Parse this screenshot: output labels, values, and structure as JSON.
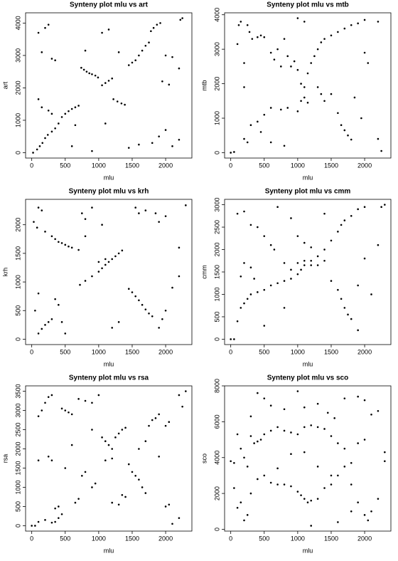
{
  "chart_data": [
    {
      "type": "scatter",
      "title": "Synteny plot mlu vs art",
      "xlabel": "mlu",
      "ylabel": "art",
      "color": "#000000",
      "xlim": [
        -92,
        2392
      ],
      "ylim": [
        -166,
        4316
      ],
      "xticks": [
        0,
        500,
        1000,
        1500,
        2000
      ],
      "yticks": [
        0,
        1000,
        2000,
        3000,
        4000
      ],
      "x": [
        20,
        80,
        120,
        160,
        200,
        240,
        300,
        350,
        400,
        450,
        500,
        550,
        600,
        650,
        700,
        740,
        780,
        820,
        860,
        900,
        950,
        990,
        1050,
        1100,
        1150,
        1200,
        1220,
        1280,
        1340,
        1390,
        1450,
        1500,
        1550,
        1600,
        1650,
        1700,
        1750,
        1780,
        1820,
        1870,
        1920,
        2220,
        2250,
        100,
        150,
        200,
        250,
        350,
        300,
        150,
        250,
        100,
        650,
        800,
        1050,
        1150,
        1300,
        1450,
        1600,
        1800,
        1900,
        2000,
        2100,
        2200,
        2050,
        1950,
        2000,
        2100,
        600,
        900,
        300,
        1100,
        2200
      ],
      "y": [
        0,
        100,
        200,
        300,
        450,
        550,
        650,
        750,
        900,
        1100,
        1200,
        1280,
        1350,
        1400,
        1450,
        2620,
        2560,
        2500,
        2450,
        2420,
        2380,
        2320,
        2080,
        2150,
        2220,
        2290,
        1650,
        1580,
        1520,
        1480,
        2700,
        2780,
        2850,
        3000,
        3150,
        3300,
        3400,
        3750,
        3850,
        3950,
        4000,
        4100,
        4150,
        3700,
        3100,
        3850,
        3950,
        2850,
        2900,
        1400,
        1300,
        1650,
        850,
        3150,
        3700,
        3800,
        3100,
        150,
        250,
        300,
        500,
        700,
        200,
        2600,
        2100,
        2200,
        3000,
        2950,
        200,
        50,
        1200,
        900,
        400
      ]
    },
    {
      "type": "scatter",
      "title": "Synteny plot mlu vs mtb",
      "xlabel": "mlu",
      "ylabel": "mtb",
      "color": "#000000",
      "xlim": [
        -92,
        2392
      ],
      "ylim": [
        -156,
        4056
      ],
      "xticks": [
        0,
        500,
        1000,
        1500,
        2000
      ],
      "yticks": [
        0,
        1000,
        2000,
        3000,
        4000
      ],
      "x": [
        0,
        50,
        100,
        120,
        150,
        200,
        250,
        280,
        320,
        400,
        450,
        500,
        600,
        650,
        700,
        750,
        800,
        850,
        900,
        950,
        1000,
        1050,
        1100,
        1150,
        1200,
        1250,
        1300,
        1350,
        1400,
        1500,
        1600,
        1700,
        1800,
        1900,
        2000,
        2200,
        1300,
        1350,
        1400,
        1650,
        1700,
        1750,
        1800,
        200,
        250,
        300,
        400,
        500,
        450,
        600,
        750,
        850,
        1000,
        1050,
        1100,
        1150,
        1500,
        1600,
        2000,
        2050,
        2200,
        2250,
        1000,
        1100,
        600,
        800,
        200,
        1850,
        1950
      ],
      "y": [
        0,
        20,
        3150,
        3700,
        3800,
        2600,
        3700,
        3500,
        3300,
        3350,
        3400,
        3350,
        2900,
        2700,
        3000,
        2500,
        3300,
        2800,
        2500,
        2650,
        2400,
        2000,
        1900,
        2300,
        2600,
        2800,
        3000,
        3200,
        3300,
        3400,
        3500,
        3600,
        3700,
        3750,
        3850,
        3800,
        1900,
        1700,
        1500,
        800,
        650,
        500,
        380,
        400,
        300,
        800,
        900,
        1100,
        600,
        1300,
        1250,
        1300,
        1200,
        1500,
        1600,
        1450,
        1700,
        1150,
        2900,
        2600,
        400,
        50,
        3900,
        3800,
        300,
        200,
        1900,
        1600,
        1000
      ]
    },
    {
      "type": "scatter",
      "title": "Synteny plot mlu vs krh",
      "xlabel": "mlu",
      "ylabel": "krh",
      "color": "#000000",
      "xlim": [
        -92,
        2392
      ],
      "ylim": [
        -94,
        2444
      ],
      "xticks": [
        0,
        500,
        1000,
        1500,
        2000
      ],
      "yticks": [
        0,
        500,
        1000,
        1500,
        2000
      ],
      "x": [
        30,
        80,
        100,
        150,
        200,
        300,
        350,
        400,
        450,
        500,
        550,
        600,
        700,
        720,
        800,
        900,
        1000,
        1050,
        1100,
        1150,
        1200,
        1250,
        1300,
        1350,
        1450,
        1500,
        1550,
        1600,
        1650,
        1700,
        1750,
        1800,
        1850,
        1900,
        2000,
        2300,
        100,
        150,
        200,
        250,
        300,
        50,
        100,
        350,
        400,
        450,
        500,
        750,
        800,
        900,
        1000,
        1100,
        1550,
        1600,
        1700,
        1900,
        1950,
        2000,
        2100,
        2200,
        1200,
        1300,
        800,
        1050,
        2200
      ],
      "y": [
        2050,
        1950,
        2300,
        2250,
        1880,
        1800,
        1750,
        1700,
        1680,
        1650,
        1620,
        1600,
        1560,
        950,
        1020,
        1100,
        1180,
        1240,
        1300,
        1350,
        1400,
        1450,
        1500,
        1550,
        880,
        820,
        750,
        680,
        600,
        520,
        450,
        400,
        2200,
        2050,
        2150,
        2340,
        100,
        180,
        250,
        300,
        350,
        500,
        800,
        700,
        600,
        300,
        100,
        2200,
        2100,
        2300,
        1350,
        1400,
        2300,
        2200,
        2250,
        200,
        350,
        500,
        900,
        1100,
        200,
        300,
        1800,
        2000,
        1600
      ]
    },
    {
      "type": "scatter",
      "title": "Synteny plot mlu vs cmm",
      "xlabel": "mlu",
      "ylabel": "cmm",
      "color": "#000000",
      "xlim": [
        -92,
        2392
      ],
      "ylim": [
        -120,
        3120
      ],
      "xticks": [
        0,
        500,
        1000,
        1500,
        2000
      ],
      "yticks": [
        0,
        500,
        1000,
        1500,
        2000,
        2500,
        3000
      ],
      "x": [
        0,
        50,
        100,
        150,
        200,
        250,
        300,
        400,
        500,
        600,
        700,
        800,
        900,
        1000,
        1050,
        1100,
        1200,
        1300,
        1400,
        1500,
        1600,
        1650,
        1700,
        1800,
        1900,
        2000,
        2250,
        2300,
        100,
        200,
        300,
        400,
        500,
        600,
        650,
        150,
        200,
        300,
        350,
        800,
        900,
        1000,
        1100,
        1200,
        1300,
        1400,
        1500,
        1600,
        1650,
        1700,
        1750,
        1800,
        1000,
        1100,
        1200,
        700,
        900,
        1400,
        1900,
        2100,
        2200,
        2000,
        500,
        800,
        1900
      ],
      "y": [
        0,
        0,
        400,
        700,
        800,
        900,
        1000,
        1050,
        1100,
        1200,
        1250,
        1300,
        1350,
        1450,
        1550,
        1650,
        1750,
        1850,
        2000,
        2200,
        2400,
        2550,
        2650,
        2750,
        2900,
        2950,
        2950,
        3000,
        2800,
        2850,
        2550,
        2500,
        2300,
        2100,
        2000,
        1400,
        1700,
        1600,
        1350,
        1700,
        1550,
        1700,
        1750,
        1650,
        1650,
        1750,
        1300,
        1100,
        900,
        700,
        550,
        450,
        2300,
        2150,
        2050,
        2950,
        2700,
        2800,
        1200,
        1000,
        2100,
        1800,
        300,
        700,
        200
      ]
    },
    {
      "type": "scatter",
      "title": "Synteny plot mlu vs rsa",
      "xlabel": "mlu",
      "ylabel": "rsa",
      "color": "#000000",
      "xlim": [
        -92,
        2392
      ],
      "ylim": [
        -140,
        3640
      ],
      "xticks": [
        0,
        500,
        1000,
        1500,
        2000
      ],
      "yticks": [
        0,
        500,
        1000,
        1500,
        2000,
        2500,
        3000,
        3500
      ],
      "x": [
        0,
        50,
        100,
        200,
        300,
        350,
        400,
        450,
        350,
        400,
        200,
        250,
        300,
        150,
        100,
        450,
        500,
        550,
        600,
        700,
        800,
        900,
        1000,
        1050,
        1100,
        1150,
        1200,
        1250,
        1300,
        1350,
        1400,
        650,
        700,
        750,
        800,
        900,
        950,
        1200,
        1300,
        1350,
        1400,
        1450,
        1500,
        1550,
        1600,
        1650,
        1700,
        1700,
        1750,
        1800,
        1850,
        1900,
        2000,
        2050,
        2200,
        2300,
        2200,
        2100,
        2000,
        2050,
        250,
        300,
        100,
        1600,
        1900,
        2250,
        600,
        500,
        1100,
        1200,
        900
      ],
      "y": [
        0,
        0,
        100,
        150,
        80,
        100,
        200,
        300,
        450,
        500,
        3200,
        3350,
        3400,
        3000,
        2850,
        3050,
        3000,
        2950,
        2900,
        3300,
        3250,
        3200,
        3400,
        2300,
        2200,
        2100,
        2000,
        2300,
        2400,
        2500,
        2550,
        600,
        700,
        1300,
        1400,
        1000,
        1100,
        600,
        550,
        800,
        750,
        1600,
        1400,
        1300,
        1200,
        1000,
        850,
        2200,
        2600,
        2750,
        2800,
        2900,
        2600,
        2700,
        3400,
        3500,
        200,
        50,
        500,
        550,
        1800,
        1700,
        1700,
        2000,
        1800,
        3100,
        2100,
        1500,
        1700,
        1750,
        2500
      ]
    },
    {
      "type": "scatter",
      "title": "Synteny plot mlu vs sco",
      "xlabel": "mlu",
      "ylabel": "sco",
      "color": "#000000",
      "xlim": [
        -92,
        2392
      ],
      "ylim": [
        -100,
        8000
      ],
      "xticks": [
        0,
        500,
        1000,
        1500,
        2000
      ],
      "yticks": [
        0,
        2000,
        4000,
        6000,
        8000
      ],
      "x": [
        0,
        50,
        100,
        150,
        200,
        250,
        300,
        350,
        400,
        450,
        500,
        600,
        700,
        800,
        900,
        1000,
        1100,
        1200,
        1300,
        1400,
        1500,
        1600,
        1700,
        1800,
        1900,
        2000,
        2100,
        2200,
        2300,
        100,
        150,
        200,
        250,
        300,
        400,
        500,
        600,
        700,
        800,
        900,
        1000,
        1050,
        1100,
        1150,
        1200,
        1300,
        1400,
        1500,
        1600,
        1700,
        1800,
        1900,
        2000,
        2050,
        2100,
        2200,
        300,
        400,
        500,
        600,
        800,
        1000,
        1100,
        1300,
        1450,
        1550,
        1700,
        1900,
        2000,
        2300,
        700,
        900,
        1100,
        1300,
        1500,
        1800,
        50,
        1200,
        1600
      ],
      "y": [
        3800,
        3700,
        5300,
        4500,
        4000,
        3500,
        5200,
        4800,
        4900,
        5000,
        5300,
        5500,
        5700,
        5500,
        5400,
        5300,
        5700,
        5800,
        5700,
        5600,
        5200,
        4800,
        4500,
        3700,
        4800,
        5000,
        6400,
        6600,
        3800,
        1200,
        1500,
        500,
        800,
        2000,
        2800,
        3000,
        2600,
        2500,
        2500,
        2400,
        2100,
        1900,
        1700,
        1500,
        1600,
        1700,
        2300,
        2500,
        3000,
        3500,
        2500,
        1500,
        800,
        500,
        1000,
        1700,
        6300,
        7600,
        7300,
        6900,
        6700,
        7700,
        6800,
        7000,
        6500,
        6200,
        7300,
        7400,
        7200,
        4300,
        3400,
        4200,
        4300,
        3500,
        3000,
        1000,
        2300,
        200,
        400
      ]
    }
  ]
}
